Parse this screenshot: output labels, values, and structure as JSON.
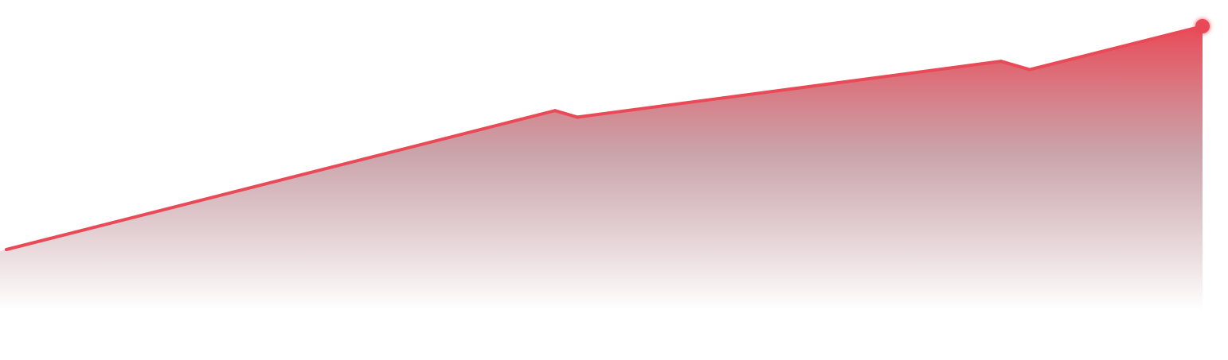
{
  "chart_data": {
    "type": "area",
    "x": [
      0,
      1,
      2,
      3,
      4,
      5
    ],
    "series": [
      {
        "values": [
          100,
          153.5,
          151,
          172.5,
          169.3,
          186
        ]
      }
    ],
    "ylim": [
      70,
      190
    ],
    "grid": false,
    "legend": "none",
    "colors": {
      "line": "#e94a57",
      "area_top": "#e94a57",
      "area_mid": "#c49ba2",
      "area_bottom": "#ffffff",
      "end_marker": "#e94a57"
    }
  }
}
